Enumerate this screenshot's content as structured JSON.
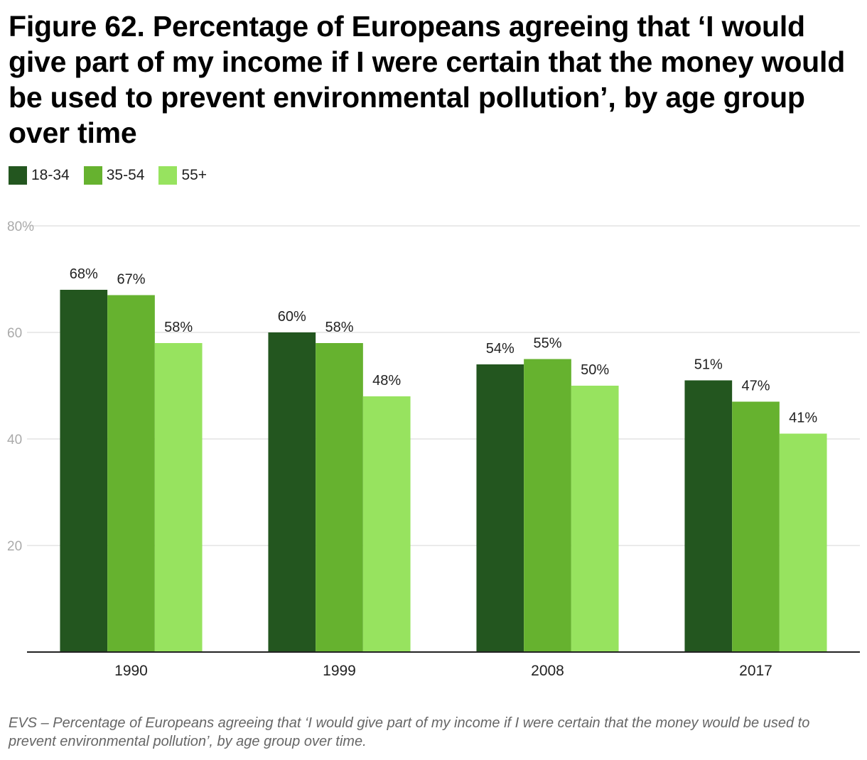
{
  "chart_data": {
    "type": "bar",
    "title": "Figure 62. Percentage of Europeans agreeing that ‘I would give part of my income if I were certain that the money would be used to prevent environmental pollution’, by age group over time",
    "categories": [
      "1990",
      "1999",
      "2008",
      "2017"
    ],
    "series": [
      {
        "name": "18-34",
        "color": "#23561f",
        "values": [
          68,
          60,
          54,
          51
        ]
      },
      {
        "name": "35-54",
        "color": "#66b22f",
        "values": [
          67,
          58,
          55,
          47
        ]
      },
      {
        "name": "55+",
        "color": "#97e35f",
        "values": [
          58,
          48,
          50,
          41
        ]
      }
    ],
    "data_labels": [
      [
        "68%",
        "60%",
        "54%",
        "51%"
      ],
      [
        "67%",
        "58%",
        "55%",
        "47%"
      ],
      [
        "58%",
        "48%",
        "50%",
        "41%"
      ]
    ],
    "ylim": [
      0,
      80
    ],
    "yticks": [
      20,
      40,
      60,
      80
    ],
    "ytick_labels": [
      "20",
      "40",
      "60",
      "80%"
    ],
    "xlabel": "",
    "ylabel": "",
    "grid": true,
    "legend_position": "top-left",
    "gridline_color": "#e3e3e3",
    "axis_label_color": "#aaaaaa",
    "caption": "EVS – Percentage of Europeans agreeing that ‘I would give part of my income if I were certain that the money would be used to prevent environmental pollution’, by age group over time."
  }
}
